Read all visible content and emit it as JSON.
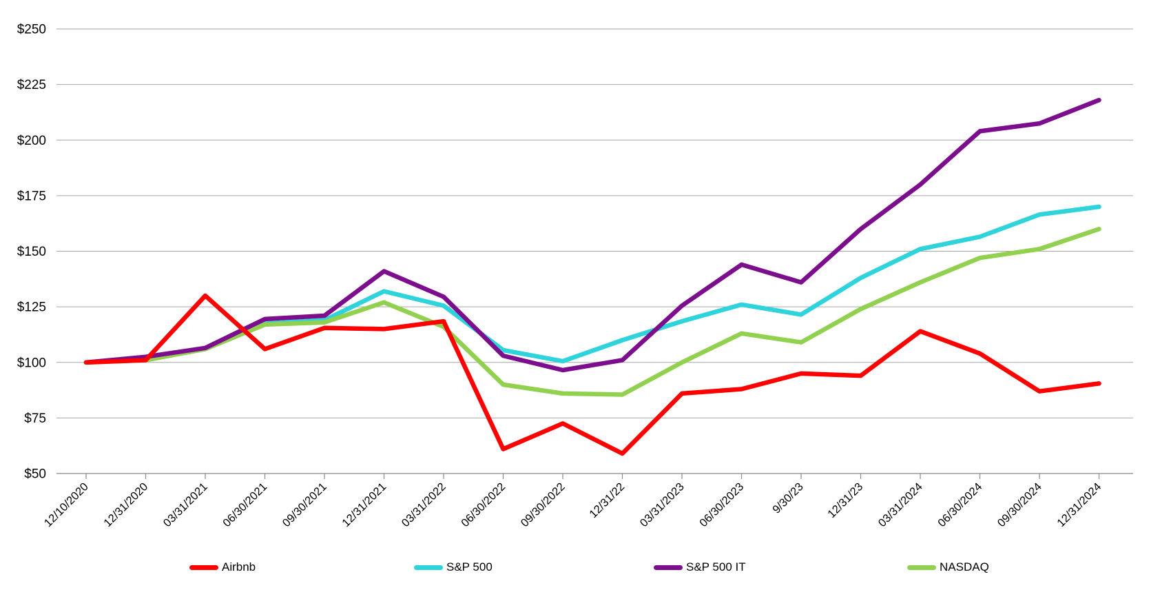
{
  "chart_data": {
    "type": "line",
    "title": "",
    "xlabel": "",
    "ylabel": "",
    "y_min": 50,
    "y_max": 250,
    "y_step": 25,
    "y_ticks": [
      "$250",
      "$225",
      "$200",
      "$175",
      "$150",
      "$125",
      "$100",
      "$75",
      "$50"
    ],
    "grid": true,
    "legend_position": "bottom",
    "categories": [
      "12/10/2020",
      "12/31/2020",
      "03/31/2021",
      "06/30/2021",
      "09/30/2021",
      "12/31/2021",
      "03/31/2022",
      "06/30/2022",
      "09/30/2022",
      "12/31/22",
      "03/31/2023",
      "06/30/2023",
      "9/30/23",
      "12/31/23",
      "03/31/2024",
      "06/30/2024",
      "09/30/2024",
      "12/31/2024"
    ],
    "series": [
      {
        "name": "Airbnb",
        "color": "#FE0000",
        "values": [
          100,
          101,
          130,
          106,
          115.5,
          115,
          118.5,
          61,
          72.5,
          59,
          86,
          88,
          95,
          94,
          114,
          104,
          87,
          90.5
        ]
      },
      {
        "name": "S&P 500",
        "color": "#2FD3DC",
        "values": [
          100,
          101.5,
          106,
          117.5,
          119,
          132,
          125.5,
          105.5,
          100.5,
          110,
          118.5,
          126,
          121.5,
          138,
          151,
          156.5,
          166.5,
          170
        ]
      },
      {
        "name": "S&P 500 IT",
        "color": "#7C0E8D",
        "values": [
          100,
          102.5,
          106.5,
          119.5,
          121,
          141,
          129.5,
          103,
          96.5,
          101,
          125.5,
          144,
          136,
          160,
          180,
          204,
          207.5,
          218
        ]
      },
      {
        "name": "NASDAQ",
        "color": "#92D050",
        "values": [
          100,
          101,
          106,
          117,
          118,
          127,
          116,
          90,
          86,
          85.5,
          100,
          113,
          109,
          124,
          136,
          147,
          151,
          160
        ]
      }
    ],
    "colors": {
      "gridline": "#A6A6A6",
      "axis": "#898989",
      "text": "#000000",
      "background": "#FFFFFF"
    }
  }
}
